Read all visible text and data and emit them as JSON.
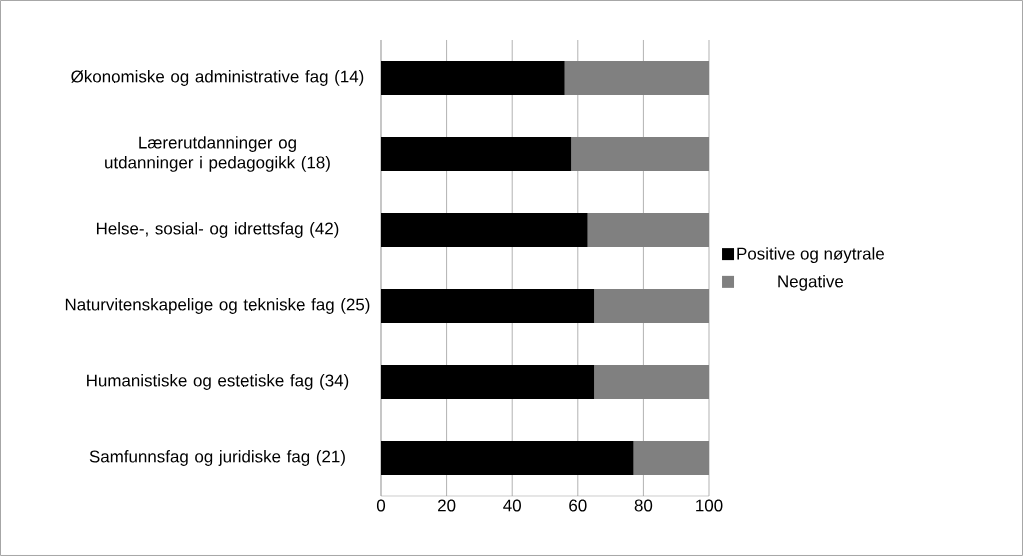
{
  "chart_data": {
    "type": "bar",
    "orientation": "horizontal",
    "stacked": true,
    "categories": [
      "Økonomiske og administrative fag (14)",
      "Lærerutdanninger og utdanninger i pedagogikk (18)",
      "Helse-, sosial- og idrettsfag (42)",
      "Naturvitenskapelige og tekniske fag (25)",
      "Humanistiske og estetiske fag (34)",
      "Samfunnsfag og juridiske fag (21)"
    ],
    "series": [
      {
        "name": "Positive og nøytrale",
        "color": "#000000",
        "values": [
          56,
          58,
          63,
          65,
          65,
          77
        ]
      },
      {
        "name": "Negative",
        "color": "#808080",
        "values": [
          44,
          42,
          37,
          35,
          35,
          23
        ]
      }
    ],
    "xlim": [
      0,
      100
    ],
    "xticks": [
      0,
      20,
      40,
      60,
      80,
      100
    ],
    "grid": "x",
    "legend": "right"
  }
}
